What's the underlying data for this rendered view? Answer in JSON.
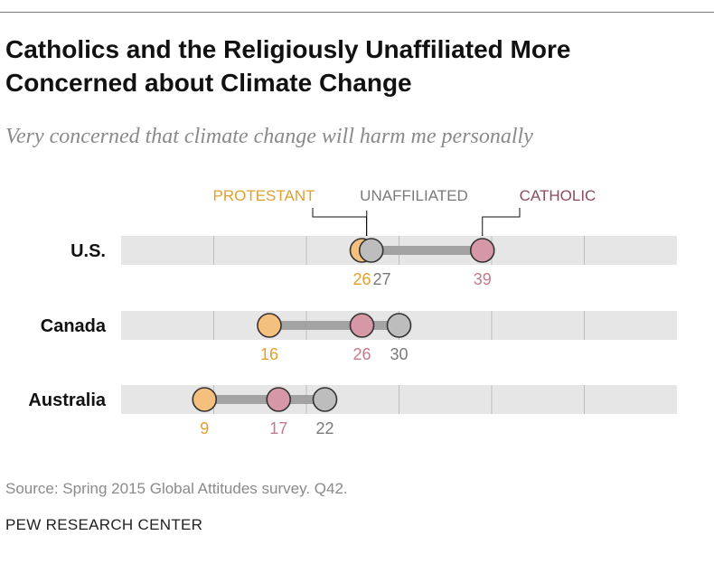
{
  "title": "Catholics and the Religiously Unaffiliated More Concerned about Climate Change",
  "subtitle": "Very concerned that climate change will harm me personally",
  "source": "Source: Spring 2015 Global Attitudes survey. Q42.",
  "credit": "PEW RESEARCH CENTER",
  "colors": {
    "protestant": "#f5c07e",
    "protestant_text": "#e0a030",
    "unaffiliated": "#bdbdbd",
    "unaffiliated_text": "#7a7a7a",
    "catholic": "#d697a7",
    "catholic_text": "#c37b8c",
    "catholic_legend": "#8e4a5c",
    "track": "#e6e6e6",
    "connector": "#a3a3a3"
  },
  "chart_data": {
    "type": "dot-range",
    "xlim": [
      0,
      60
    ],
    "gridlines": [
      0,
      10,
      20,
      30,
      40,
      50,
      60
    ],
    "categories": [
      "U.S.",
      "Canada",
      "Australia"
    ],
    "series": [
      {
        "key": "protestant",
        "name": "PROTESTANT",
        "values": [
          26,
          16,
          9
        ]
      },
      {
        "key": "unaffiliated",
        "name": "UNAFFILIATED",
        "values": [
          27,
          30,
          22
        ]
      },
      {
        "key": "catholic",
        "name": "CATHOLIC",
        "values": [
          39,
          26,
          17
        ]
      }
    ],
    "draw_order": [
      "protestant",
      "catholic",
      "unaffiliated"
    ],
    "legend_row": "U.S."
  }
}
